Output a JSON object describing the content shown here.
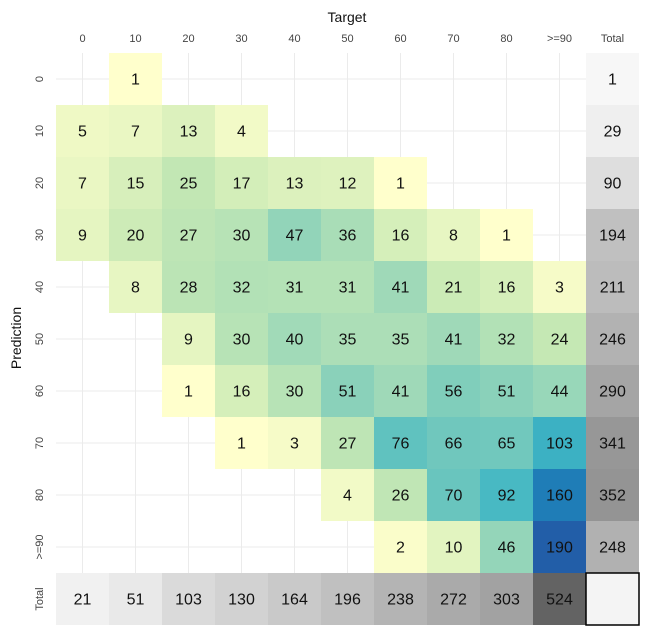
{
  "chart_data": {
    "type": "heatmap",
    "xlabel": "Target",
    "ylabel": "Prediction",
    "x_categories": [
      "0",
      "10",
      "20",
      "30",
      "40",
      "50",
      "60",
      "70",
      "80",
      ">=90"
    ],
    "y_categories": [
      "0",
      "10",
      "20",
      "30",
      "40",
      "50",
      "60",
      "70",
      "80",
      ">=90"
    ],
    "total_label": "Total",
    "matrix": [
      [
        null,
        1,
        null,
        null,
        null,
        null,
        null,
        null,
        null,
        null
      ],
      [
        5,
        7,
        13,
        4,
        null,
        null,
        null,
        null,
        null,
        null
      ],
      [
        7,
        15,
        25,
        17,
        13,
        12,
        1,
        null,
        null,
        null
      ],
      [
        9,
        20,
        27,
        30,
        47,
        36,
        16,
        8,
        1,
        null
      ],
      [
        null,
        8,
        28,
        32,
        31,
        31,
        41,
        21,
        16,
        3
      ],
      [
        null,
        null,
        9,
        30,
        40,
        35,
        35,
        41,
        32,
        24
      ],
      [
        null,
        null,
        1,
        16,
        30,
        51,
        41,
        56,
        51,
        44
      ],
      [
        null,
        null,
        null,
        1,
        3,
        27,
        76,
        66,
        65,
        103
      ],
      [
        null,
        null,
        null,
        null,
        null,
        4,
        26,
        70,
        92,
        160
      ],
      [
        null,
        null,
        null,
        null,
        null,
        null,
        2,
        10,
        46,
        190
      ]
    ],
    "row_totals": [
      1,
      29,
      90,
      194,
      211,
      246,
      290,
      341,
      352,
      248
    ],
    "col_totals": [
      21,
      51,
      103,
      130,
      164,
      196,
      238,
      272,
      303,
      524
    ],
    "grand_total": null,
    "value_range": [
      1,
      190
    ],
    "total_range": [
      1,
      524
    ],
    "colors": {
      "scale": [
        "#ffffcc",
        "#c7e9b4",
        "#7fcdbb",
        "#41b6c4",
        "#1d91c0",
        "#225ea8"
      ],
      "total_scale": [
        "#f7f7f7",
        "#636363"
      ],
      "gridline": "#ebebeb",
      "grand_total_border": "#000000"
    },
    "grid": true
  }
}
